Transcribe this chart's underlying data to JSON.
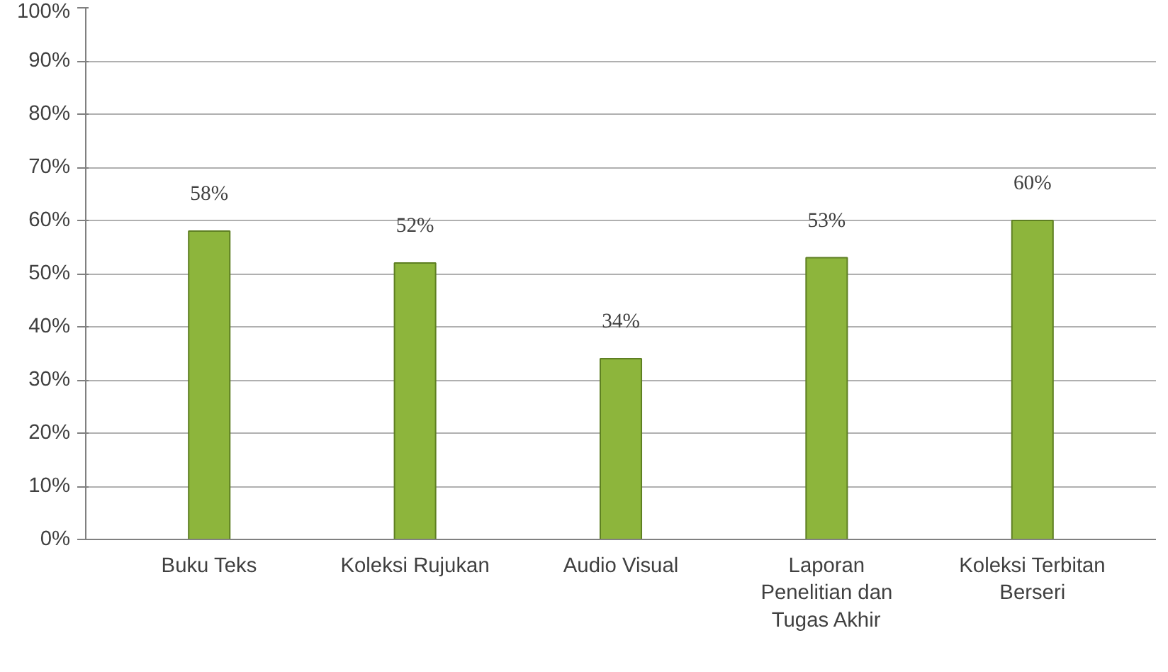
{
  "chart_data": {
    "type": "bar",
    "categories": [
      "Buku Teks",
      "Koleksi Rujukan",
      "Audio Visual",
      "Laporan Penelitian dan Tugas Akhir",
      "Koleksi Terbitan Berseri"
    ],
    "values": [
      58,
      52,
      34,
      53,
      60
    ],
    "value_labels": [
      "58%",
      "52%",
      "34%",
      "53%",
      "60%"
    ],
    "color": "#8db53c",
    "ylim": [
      0,
      100
    ],
    "yticks": [
      {
        "value": 0,
        "label": "0%"
      },
      {
        "value": 10,
        "label": "10%"
      },
      {
        "value": 20,
        "label": "20%"
      },
      {
        "value": 30,
        "label": "30%"
      },
      {
        "value": 40,
        "label": "40%"
      },
      {
        "value": 50,
        "label": "50%"
      },
      {
        "value": 60,
        "label": "60%"
      },
      {
        "value": 70,
        "label": "70%"
      },
      {
        "value": 80,
        "label": "80%"
      },
      {
        "value": 90,
        "label": "90%"
      },
      {
        "value": 100,
        "label": "100%"
      }
    ],
    "grid": "y"
  }
}
